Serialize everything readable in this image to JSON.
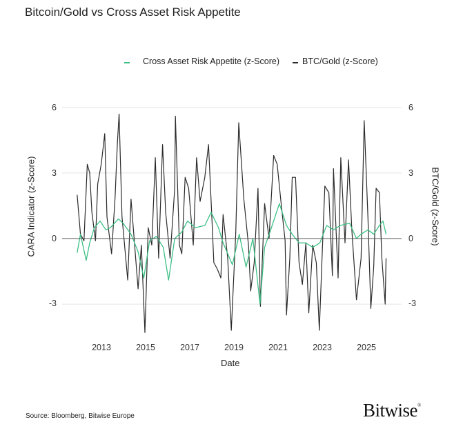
{
  "chart_data": {
    "type": "line",
    "title": "Bitcoin/Gold vs Cross Asset Risk Appetite",
    "xlabel": "Date",
    "ylabel_left": "CARA Indicator (z-Score)",
    "ylabel_right": "BTC/Gold (z-Score)",
    "ylim": [
      -4.6,
      6
    ],
    "yticks": [
      "6",
      "3",
      "0",
      "-3"
    ],
    "ytick_values": [
      6,
      3,
      0,
      -3
    ],
    "xticks": [
      "2013",
      "2015",
      "2017",
      "2019",
      "2021",
      "2023",
      "2025"
    ],
    "xtick_values": [
      2013,
      2015,
      2017,
      2019,
      2021,
      2023,
      2025
    ],
    "grid": "horizontal",
    "legend_placement": "top-center",
    "series": [
      {
        "name": "Cross Asset Risk Appetite (z-Score)",
        "color": "#3dbf85",
        "x": [
          2011.9,
          2012.05,
          2012.31,
          2012.47,
          2012.68,
          2012.94,
          2013.2,
          2013.41,
          2013.77,
          2013.98,
          2014.34,
          2014.66,
          2014.92,
          2015.18,
          2015.49,
          2015.8,
          2016.04,
          2016.32,
          2016.64,
          2016.9,
          2017.26,
          2017.68,
          2017.97,
          2018.3,
          2018.51,
          2018.93,
          2019.24,
          2019.55,
          2019.86,
          2020.18,
          2020.39,
          2020.7,
          2021.06,
          2021.38,
          2021.64,
          2021.95,
          2022.26,
          2022.57,
          2022.89,
          2023.2,
          2023.51,
          2023.82,
          2024.24,
          2024.55,
          2024.76,
          2025.07,
          2025.33,
          2025.59,
          2025.75,
          2025.89
        ],
        "y": [
          -0.65,
          0.2,
          -1.0,
          -0.2,
          0.5,
          0.8,
          0.4,
          0.5,
          0.9,
          0.7,
          0.2,
          -0.6,
          -1.8,
          -0.1,
          0.1,
          -0.4,
          -1.9,
          0,
          0.3,
          0.8,
          0.5,
          0.6,
          1.2,
          0.5,
          -0.2,
          -1.2,
          0.2,
          -1.3,
          0,
          -3.0,
          -0.4,
          0.5,
          1.6,
          0.6,
          0.2,
          -0.2,
          -0.2,
          -0.4,
          -0.2,
          0.6,
          0.4,
          0.6,
          0.7,
          0,
          0.2,
          0.4,
          0.2,
          0.6,
          0.8,
          0.2
        ]
      },
      {
        "name": "BTC/Gold (z-Score)",
        "color": "#2b2b2b",
        "x": [
          2011.9,
          2012.05,
          2012.21,
          2012.36,
          2012.47,
          2012.57,
          2012.73,
          2012.83,
          2012.99,
          2013.15,
          2013.25,
          2013.46,
          2013.62,
          2013.72,
          2013.8,
          2013.93,
          2014.19,
          2014.34,
          2014.66,
          2014.81,
          2014.97,
          2015.12,
          2015.28,
          2015.44,
          2015.59,
          2015.77,
          2015.91,
          2016.11,
          2016.32,
          2016.35,
          2016.53,
          2016.64,
          2016.79,
          2016.95,
          2017.16,
          2017.31,
          2017.47,
          2017.68,
          2017.85,
          2017.99,
          2018.09,
          2018.25,
          2018.41,
          2018.51,
          2018.72,
          2018.88,
          2019.08,
          2019.22,
          2019.45,
          2019.66,
          2019.76,
          2019.92,
          2020.09,
          2020.2,
          2020.39,
          2020.59,
          2020.8,
          2020.96,
          2021.12,
          2021.32,
          2021.38,
          2021.53,
          2021.64,
          2021.79,
          2021.95,
          2022.1,
          2022.26,
          2022.39,
          2022.57,
          2022.73,
          2022.87,
          2022.99,
          2023.12,
          2023.3,
          2023.46,
          2023.51,
          2023.72,
          2023.84,
          2024.03,
          2024.19,
          2024.34,
          2024.55,
          2024.76,
          2024.9,
          2025.07,
          2025.2,
          2025.33,
          2025.44,
          2025.59,
          2025.7,
          2025.8,
          2025.85,
          2025.89
        ],
        "y": [
          2.0,
          0.2,
          -0.1,
          3.4,
          3.0,
          1.2,
          -0.1,
          2.5,
          3.4,
          4.8,
          1.0,
          -0.7,
          1.9,
          4.3,
          5.7,
          1.0,
          -1.9,
          1.8,
          -2.3,
          -0.3,
          -4.3,
          0.5,
          -0.3,
          3.7,
          -0.9,
          4.3,
          1.2,
          -0.9,
          2.3,
          5.6,
          -0.3,
          -0.7,
          2.8,
          2.3,
          -0.3,
          3.7,
          1.7,
          2.8,
          4.3,
          1.2,
          -1.1,
          -1.4,
          -1.8,
          1.1,
          -0.9,
          -4.2,
          0.2,
          5.3,
          1.8,
          -0.3,
          -2.4,
          -1.1,
          2.3,
          -3.1,
          1.6,
          0,
          3.8,
          3.4,
          1.8,
          -0.1,
          -3.5,
          -0.9,
          2.8,
          2.8,
          -1.1,
          -2.1,
          -0.2,
          -3.4,
          -0.3,
          -1.1,
          -4.2,
          -0.9,
          2.4,
          2.1,
          -1.7,
          3.2,
          -1.8,
          3.7,
          -0.2,
          3.6,
          0.4,
          -2.8,
          -0.9,
          5.4,
          1.0,
          -3.2,
          -1.3,
          2.3,
          2.1,
          -0.9,
          -2.3,
          -3.0,
          -0.9
        ]
      }
    ]
  },
  "footer": {
    "source": "Source: Bloomberg, Bitwise Europe",
    "logo": "Bitwise",
    "logo_mark": "®"
  }
}
